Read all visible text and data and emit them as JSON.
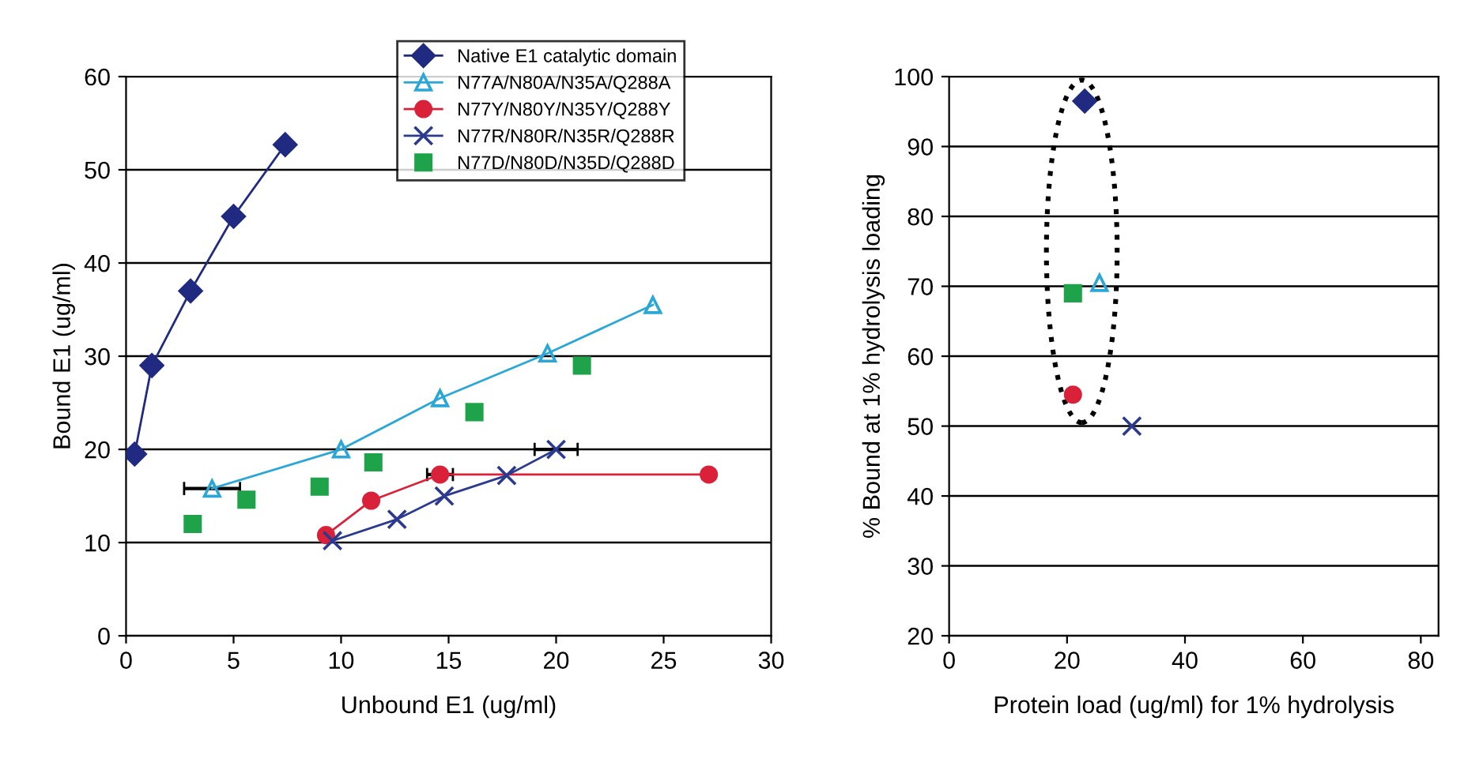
{
  "chart_data": [
    {
      "type": "line",
      "xlabel": "Unbound E1 (ug/ml)",
      "ylabel": "Bound E1 (ug/ml)",
      "xlim": [
        0,
        30
      ],
      "ylim": [
        0,
        60
      ],
      "xticks": [
        0,
        5,
        10,
        15,
        20,
        25,
        30
      ],
      "yticks": [
        0,
        10,
        20,
        30,
        40,
        50,
        60
      ],
      "grid": "y",
      "legend": "top right",
      "series": [
        {
          "name": "Native E1 catalytic domain",
          "color": "#1f2a80",
          "marker": "diamond",
          "x": [
            0.4,
            1.2,
            3,
            5,
            7.4
          ],
          "values": [
            19.5,
            29,
            37,
            45,
            52.7
          ]
        },
        {
          "name": "N77A/N80A/N35A/Q288A",
          "color": "#2aa7d6",
          "marker": "triangle",
          "x": [
            4,
            10,
            14.6,
            19.6,
            24.5
          ],
          "values": [
            15.8,
            20,
            25.5,
            30.3,
            35.5
          ],
          "xerrors": [
            1.3,
            null,
            null,
            null,
            null
          ]
        },
        {
          "name": "N77Y/N80Y/N35Y/Q288Y",
          "color": "#d9213a",
          "marker": "circle",
          "x": [
            9.3,
            11.4,
            14.6,
            27.1
          ],
          "values": [
            10.8,
            14.5,
            17.3,
            17.3
          ],
          "xerrors": [
            null,
            null,
            0.6,
            null
          ]
        },
        {
          "name": "N77R/N80R/N35R/Q288R",
          "color": "#2b3a8f",
          "marker": "cross",
          "x": [
            9.6,
            12.6,
            14.8,
            17.7,
            20
          ],
          "values": [
            10.2,
            12.5,
            15,
            17.2,
            20
          ],
          "xerrors": [
            null,
            null,
            null,
            null,
            1
          ]
        },
        {
          "name": "N77D/N80D/N35D/Q288D",
          "type": "scatter",
          "color": "#1fa34a",
          "marker": "square",
          "x": [
            3.1,
            5.6,
            9,
            11.5,
            16.2,
            21.2
          ],
          "values": [
            12,
            14.6,
            16,
            18.6,
            24,
            29
          ]
        }
      ]
    },
    {
      "type": "scatter",
      "xlabel": "Protein load (ug/ml) for 1% hydrolysis",
      "ylabel": "% Bound at 1% hydrolysis loading",
      "xlim": [
        0,
        83
      ],
      "ylim": [
        20,
        100
      ],
      "xticks": [
        0,
        20,
        40,
        60,
        80
      ],
      "yticks": [
        20,
        30,
        40,
        50,
        60,
        70,
        80,
        90,
        100
      ],
      "grid": "y",
      "series": [
        {
          "color": "#1f2a80",
          "marker": "diamond",
          "x": [
            23
          ],
          "values": [
            96.5
          ]
        },
        {
          "color": "#2aa7d6",
          "marker": "triangle",
          "x": [
            25.5
          ],
          "values": [
            70.5
          ]
        },
        {
          "color": "#d9213a",
          "marker": "circle",
          "x": [
            21
          ],
          "values": [
            54.5
          ]
        },
        {
          "color": "#2b3a8f",
          "marker": "cross",
          "x": [
            31
          ],
          "values": [
            50
          ]
        },
        {
          "color": "#1fa34a",
          "marker": "square",
          "x": [
            21
          ],
          "values": [
            69
          ]
        }
      ]
    }
  ]
}
